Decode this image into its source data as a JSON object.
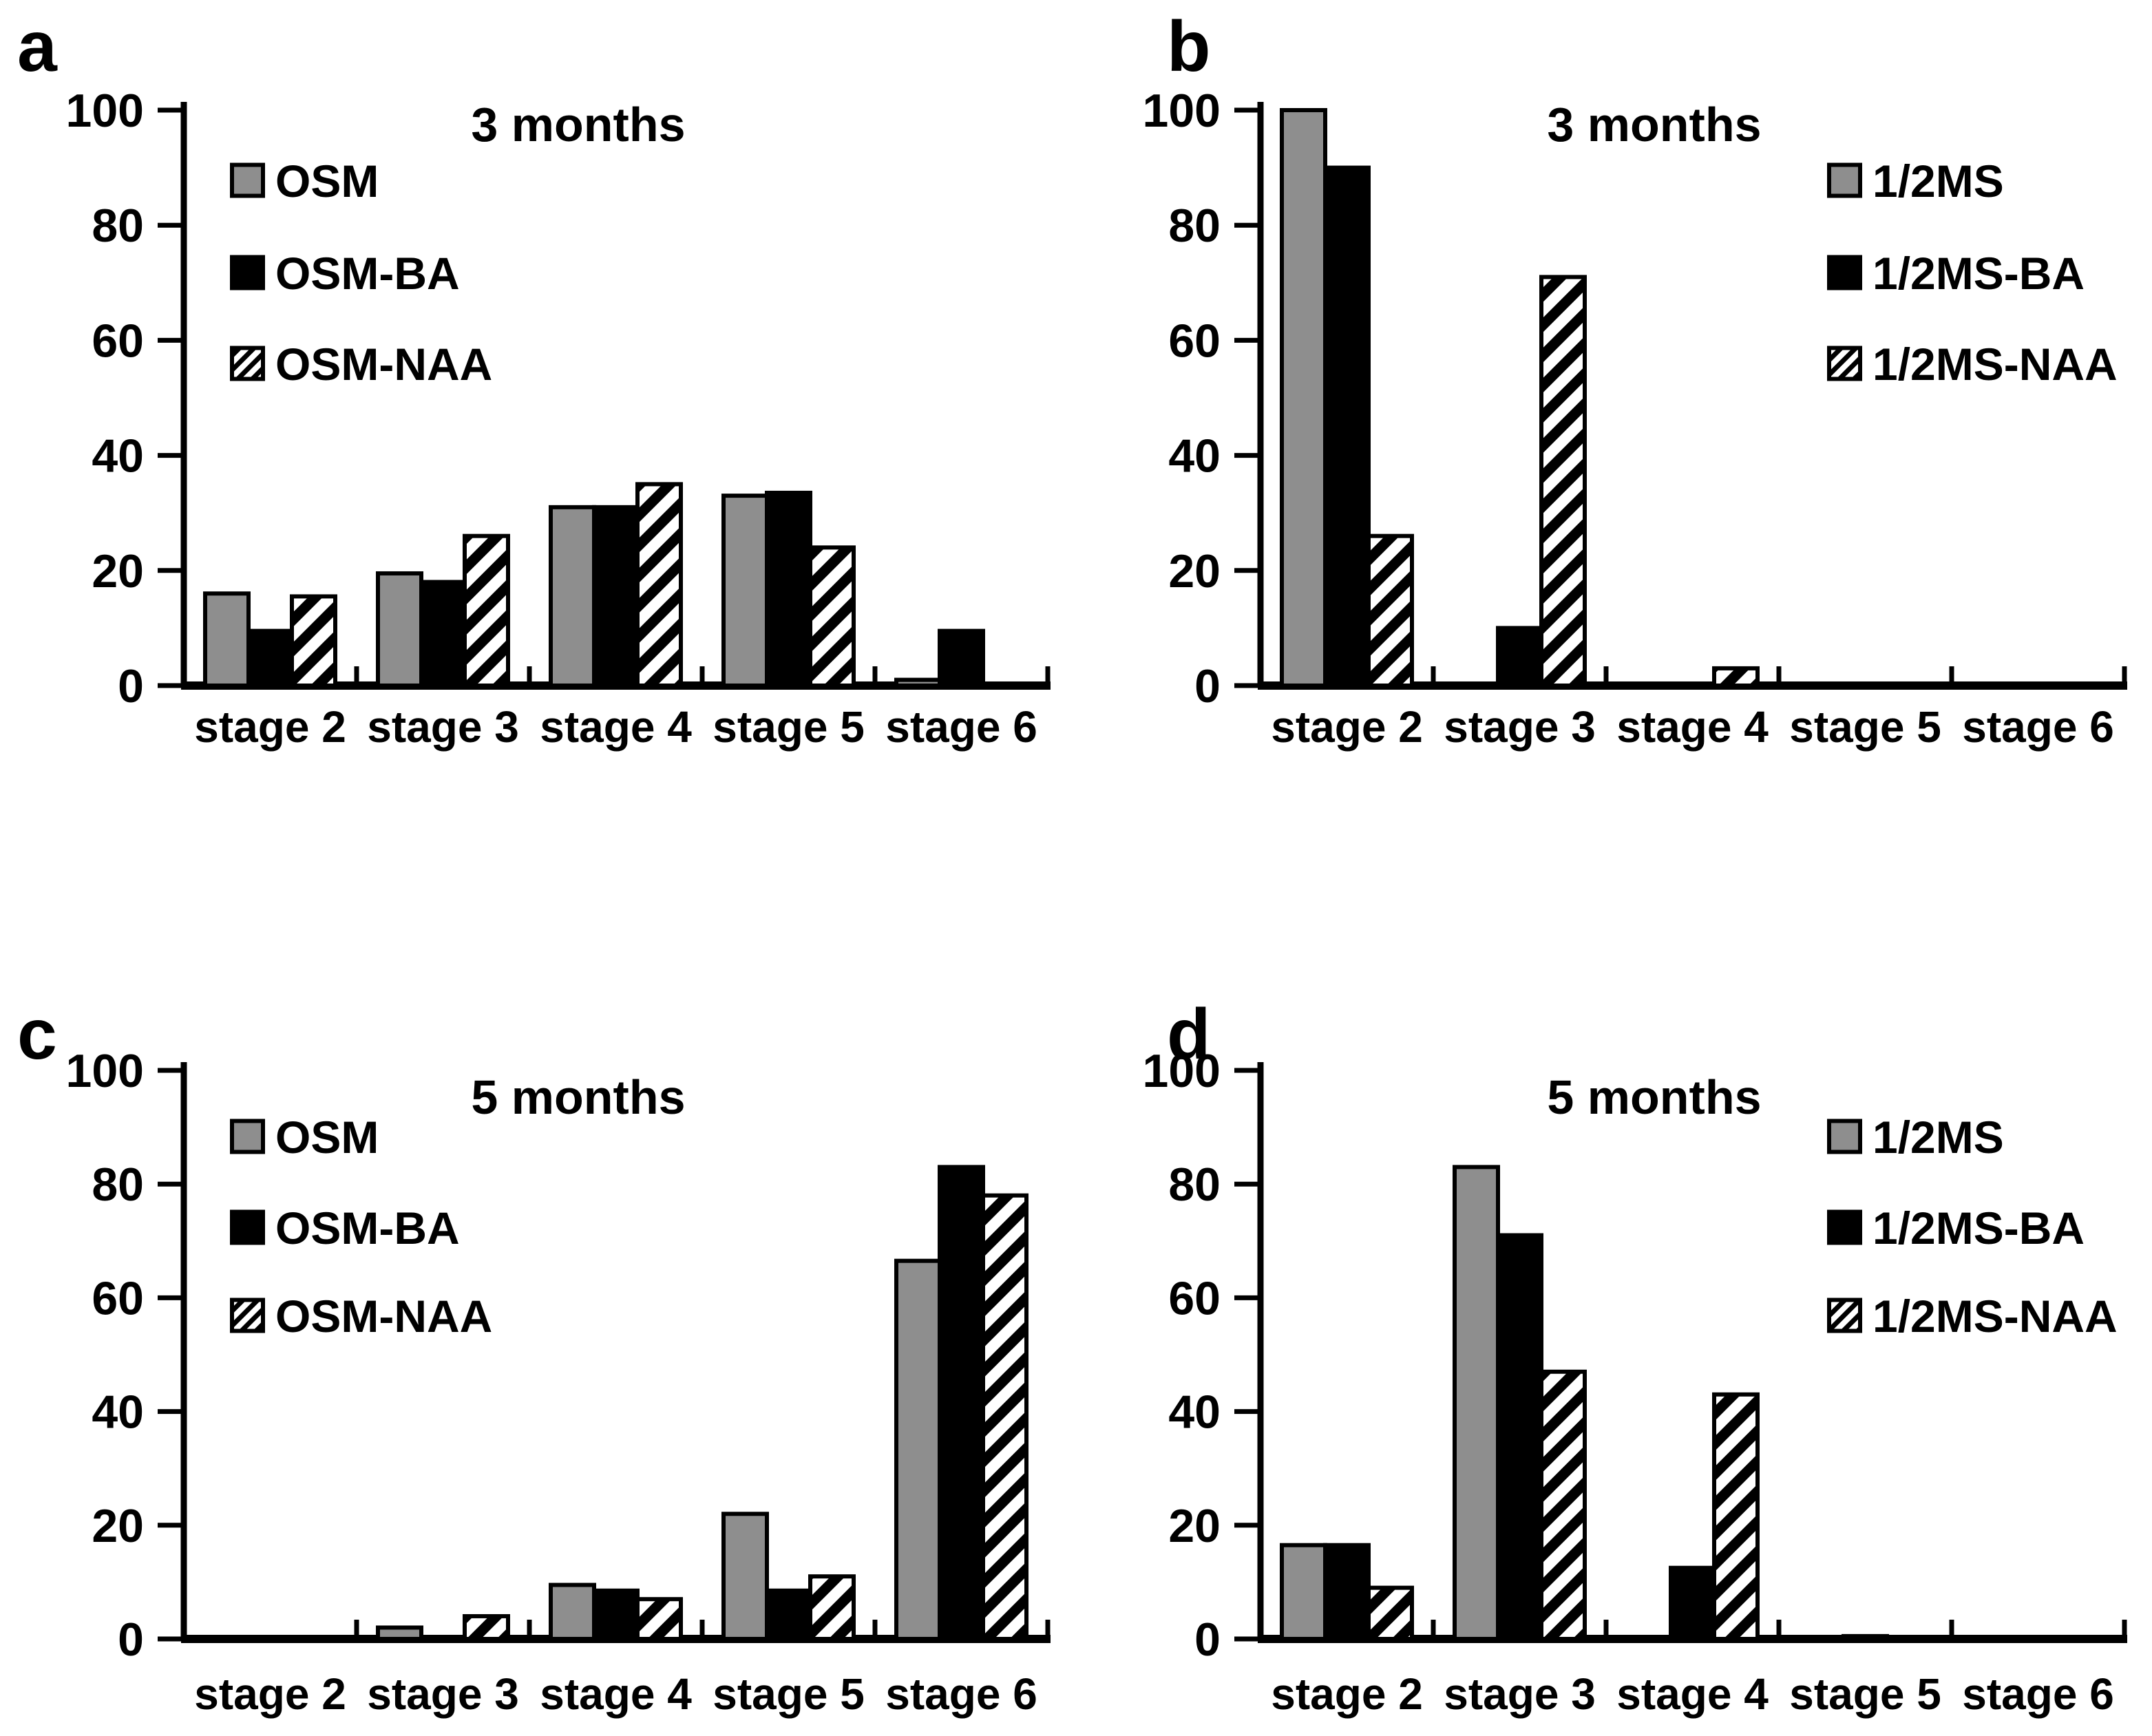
{
  "figure_background": "#ffffff",
  "palette": {
    "gray_fill": "#8e8e8e",
    "black_fill": "#000000",
    "hatch_foreground": "#000000",
    "hatch_background": "#ffffff",
    "axis_color": "#000000"
  },
  "categories": [
    "stage 2",
    "stage 3",
    "stage 4",
    "stage 5",
    "stage 6"
  ],
  "chart_data": [
    {
      "panel_letter": "a",
      "type": "bar",
      "title": "3 months",
      "xlabel": "",
      "ylabel": "",
      "ylim": [
        0,
        100
      ],
      "yticks": [
        0,
        20,
        40,
        60,
        80,
        100
      ],
      "grid": false,
      "legend_position": "upper-left",
      "categories": [
        "stage 2",
        "stage 3",
        "stage 4",
        "stage 5",
        "stage 6"
      ],
      "series": [
        {
          "name": "OSM",
          "pattern": "solid-gray",
          "values": [
            16,
            19.5,
            31,
            33,
            1
          ]
        },
        {
          "name": "OSM-BA",
          "pattern": "solid-black",
          "values": [
            9.5,
            18,
            31,
            33.5,
            9.5
          ]
        },
        {
          "name": "OSM-NAA",
          "pattern": "diagonal-hatch",
          "values": [
            15.5,
            26,
            35,
            24,
            0
          ]
        }
      ]
    },
    {
      "panel_letter": "b",
      "type": "bar",
      "title": "3 months",
      "xlabel": "",
      "ylabel": "",
      "ylim": [
        0,
        100
      ],
      "yticks": [
        0,
        20,
        40,
        60,
        80,
        100
      ],
      "grid": false,
      "legend_position": "upper-right",
      "categories": [
        "stage 2",
        "stage 3",
        "stage 4",
        "stage 5",
        "stage 6"
      ],
      "series": [
        {
          "name": "1/2MS",
          "pattern": "solid-gray",
          "values": [
            100,
            0,
            0,
            0,
            0
          ]
        },
        {
          "name": "1/2MS-BA",
          "pattern": "solid-black",
          "values": [
            90,
            10,
            0,
            0,
            0
          ]
        },
        {
          "name": "1/2MS-NAA",
          "pattern": "diagonal-hatch",
          "values": [
            26,
            71,
            3,
            0,
            0
          ]
        }
      ]
    },
    {
      "panel_letter": "c",
      "type": "bar",
      "title": "5 months",
      "xlabel": "",
      "ylabel": "",
      "ylim": [
        0,
        100
      ],
      "yticks": [
        0,
        20,
        40,
        60,
        80,
        100
      ],
      "grid": false,
      "legend_position": "upper-left",
      "categories": [
        "stage 2",
        "stage 3",
        "stage 4",
        "stage 5",
        "stage 6"
      ],
      "series": [
        {
          "name": "OSM",
          "pattern": "solid-gray",
          "values": [
            0,
            2,
            9.5,
            22,
            66.5
          ]
        },
        {
          "name": "OSM-BA",
          "pattern": "solid-black",
          "values": [
            0,
            0,
            8.5,
            8.5,
            83
          ]
        },
        {
          "name": "OSM-NAA",
          "pattern": "diagonal-hatch",
          "values": [
            0,
            4,
            7,
            11,
            78
          ]
        }
      ]
    },
    {
      "panel_letter": "d",
      "type": "bar",
      "title": "5 months",
      "xlabel": "",
      "ylabel": "",
      "ylim": [
        0,
        100
      ],
      "yticks": [
        0,
        20,
        40,
        60,
        80,
        100
      ],
      "grid": false,
      "legend_position": "upper-right",
      "categories": [
        "stage 2",
        "stage 3",
        "stage 4",
        "stage 5",
        "stage 6"
      ],
      "series": [
        {
          "name": "1/2MS",
          "pattern": "solid-gray",
          "values": [
            16.5,
            83,
            0,
            0,
            0
          ]
        },
        {
          "name": "1/2MS-BA",
          "pattern": "solid-black",
          "values": [
            16.5,
            71,
            12.5,
            0.5,
            0
          ]
        },
        {
          "name": "1/2MS-NAA",
          "pattern": "diagonal-hatch",
          "values": [
            9,
            47,
            43,
            0,
            0
          ]
        }
      ]
    }
  ]
}
